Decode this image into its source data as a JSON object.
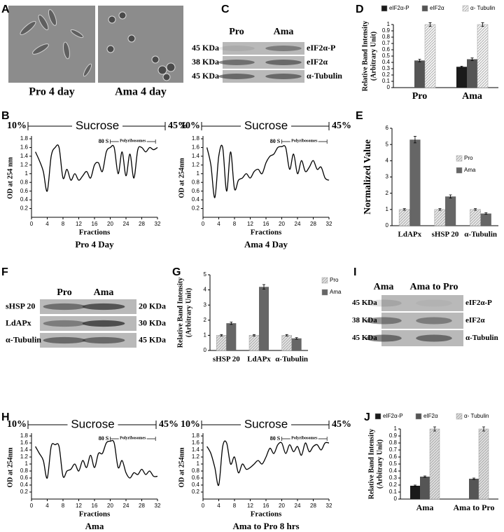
{
  "panel_labels": [
    "A",
    "B",
    "C",
    "D",
    "E",
    "F",
    "G",
    "H",
    "I",
    "J"
  ],
  "images": [
    {
      "label": "Pro 4 day"
    },
    {
      "label": "Ama 4 day"
    }
  ],
  "blots": [
    {
      "columns": [
        "Pro",
        "Ama"
      ],
      "left": [
        "45 KDa",
        "38 KDa",
        "45 KDa"
      ],
      "right": [
        "eIF2α-P",
        "eIF2α",
        "α-Tubulin"
      ]
    },
    {
      "columns": [
        "Pro",
        "Ama"
      ],
      "left": [
        "sHSP 20",
        "LdAPx",
        "α-Tubulin"
      ],
      "right": [
        "20 KDa",
        "30 KDa",
        "45 KDa"
      ]
    },
    {
      "columns": [
        "Ama",
        "Ama to Pro"
      ],
      "left": [
        "45 KDa",
        "38 KDa",
        "45 KDa"
      ],
      "right": [
        "eIF2α-P",
        "eIF2α",
        "α-Tubulin"
      ]
    }
  ],
  "chart_data": [
    {
      "type": "bar",
      "ylabel": [
        "Relative Band Intensity",
        "(Arbitrary Unit)"
      ],
      "categories": [
        "Pro",
        "Ama"
      ],
      "series": [
        {
          "name": "eIF2α-P",
          "color": "#1a1a1a",
          "hatch": false,
          "values": [
            0,
            0.33
          ],
          "errors": [
            0,
            0.01
          ]
        },
        {
          "name": "eIF2α",
          "color": "#555555",
          "hatch": false,
          "values": [
            0.43,
            0.45
          ],
          "errors": [
            0.02,
            0.02
          ]
        },
        {
          "name": "α- Tubulin",
          "color": "#f2f2f2",
          "hatch": true,
          "values": [
            1,
            1
          ],
          "errors": [
            0.03,
            0.03
          ]
        }
      ],
      "ylim": [
        0,
        1
      ],
      "yticks": [
        0,
        0.1,
        0.2,
        0.3,
        0.4,
        0.5,
        0.6,
        0.7,
        0.8,
        0.9,
        1
      ],
      "legend": "top"
    },
    {
      "type": "line",
      "header": {
        "start": "10%",
        "label": "Sucrose",
        "end": "45%"
      },
      "annotations": {
        "peak": "80 S",
        "range": "Polyribosomes"
      },
      "title": "Pro 4 Day",
      "xlabel": "Fractions",
      "ylabel": "OD at 254 nm",
      "color": "#000000",
      "x": [
        1,
        2,
        3,
        4,
        5,
        6,
        7,
        8,
        9,
        10,
        11,
        12,
        13,
        14,
        15,
        16,
        17,
        18,
        19,
        20,
        21,
        22,
        23,
        24,
        25,
        26,
        27,
        28,
        29,
        30,
        31,
        32
      ],
      "values": [
        1.5,
        1.3,
        1.05,
        0.6,
        1.4,
        1.6,
        1.6,
        0.9,
        1.1,
        0.85,
        1.0,
        0.85,
        0.95,
        1.05,
        0.9,
        1.2,
        1.25,
        1.05,
        1.5,
        1.6,
        1.6,
        1.0,
        1.5,
        0.95,
        1.45,
        0.9,
        1.55,
        1.6,
        1.5,
        1.6,
        1.55,
        1.6
      ],
      "xlim": [
        0,
        32
      ],
      "xticks": [
        0,
        4,
        8,
        12,
        16,
        20,
        24,
        28,
        32
      ],
      "ylim": [
        0,
        1.8
      ],
      "yticks": [
        0.2,
        0.4,
        0.6,
        0.8,
        1,
        1.2,
        1.4,
        1.6,
        1.8
      ]
    },
    {
      "type": "line",
      "header": {
        "start": "10%",
        "label": "Sucrose",
        "end": "45%"
      },
      "annotations": {
        "peak": "80 S",
        "range": "Polyribosomes"
      },
      "title": "Ama 4 Day",
      "xlabel": "Fractions",
      "ylabel": "OD at 254nm",
      "color": "#000000",
      "x": [
        1,
        2,
        3,
        4,
        5,
        6,
        7,
        8,
        9,
        10,
        11,
        12,
        13,
        14,
        15,
        16,
        17,
        18,
        19,
        20,
        21,
        22,
        23,
        24,
        25,
        26,
        27,
        28,
        29,
        30,
        31,
        32
      ],
      "values": [
        1.6,
        1.2,
        0.45,
        1.4,
        1.6,
        0.6,
        1.5,
        0.65,
        0.85,
        0.9,
        1.0,
        0.9,
        1.05,
        1.1,
        1.0,
        1.25,
        1.4,
        1.45,
        1.6,
        1.62,
        1.6,
        1.1,
        1.45,
        1.0,
        1.3,
        1.05,
        1.15,
        1.3,
        1.1,
        1.15,
        0.9,
        0.85
      ],
      "xlim": [
        0,
        32
      ],
      "xticks": [
        0,
        4,
        8,
        12,
        16,
        20,
        24,
        28,
        32
      ],
      "ylim": [
        0,
        1.8
      ],
      "yticks": [
        0.2,
        0.4,
        0.6,
        0.8,
        1,
        1.2,
        1.4,
        1.6,
        1.8
      ]
    },
    {
      "type": "bar",
      "ylabel": [
        "Normalized Value"
      ],
      "categories": [
        "LdAPx",
        "sHSP 20",
        "α-Tubulin"
      ],
      "series": [
        {
          "name": "Pro",
          "color": "#e6e6e6",
          "hatch": true,
          "values": [
            1,
            1,
            1
          ],
          "errors": [
            0.05,
            0.05,
            0.05
          ]
        },
        {
          "name": "Ama",
          "color": "#666666",
          "hatch": false,
          "values": [
            5.3,
            1.8,
            0.75
          ],
          "errors": [
            0.2,
            0.1,
            0.05
          ]
        }
      ],
      "ylim": [
        0,
        6
      ],
      "yticks": [
        0,
        1,
        2,
        3,
        4,
        5,
        6
      ],
      "legend": "right"
    },
    {
      "type": "bar",
      "ylabel": [
        "Relative Band Intensity",
        "(Arbitrary Unit)"
      ],
      "categories": [
        "sHSP 20",
        "LdAPx",
        "α-Tubulin"
      ],
      "series": [
        {
          "name": "Pro",
          "color": "#e0e0e0",
          "hatch": true,
          "values": [
            1,
            1,
            1
          ],
          "errors": [
            0.05,
            0.05,
            0.05
          ]
        },
        {
          "name": "Ama",
          "color": "#666666",
          "hatch": false,
          "values": [
            1.8,
            4.2,
            0.8
          ],
          "errors": [
            0.08,
            0.15,
            0.05
          ]
        }
      ],
      "ylim": [
        0,
        5
      ],
      "yticks": [
        0,
        1,
        2,
        3,
        4,
        5
      ],
      "legend": "right"
    },
    {
      "type": "line",
      "header": {
        "start": "10%",
        "label": "Sucrose",
        "end": "45%"
      },
      "annotations": {
        "peak": "80 S",
        "range": "Polyribosomes"
      },
      "title": "Ama",
      "xlabel": "Fractions",
      "ylabel": "OD at 254nm",
      "color": "#000000",
      "x": [
        1,
        2,
        3,
        4,
        5,
        6,
        7,
        8,
        9,
        10,
        11,
        12,
        13,
        14,
        15,
        16,
        17,
        18,
        19,
        20,
        21,
        22,
        23,
        24,
        25,
        26,
        27,
        28,
        29,
        30,
        31,
        32
      ],
      "values": [
        1.5,
        1.3,
        1.1,
        0.6,
        1.5,
        1.55,
        1.5,
        0.65,
        0.8,
        0.85,
        1.0,
        0.8,
        1.1,
        0.9,
        1.25,
        0.9,
        1.3,
        1.3,
        1.6,
        1.65,
        1.6,
        0.9,
        1.1,
        0.75,
        0.6,
        0.75,
        0.7,
        0.85,
        0.7,
        0.8,
        0.65,
        0.65
      ],
      "xlim": [
        0,
        32
      ],
      "xticks": [
        0,
        4,
        8,
        12,
        16,
        20,
        24,
        28,
        32
      ],
      "ylim": [
        0,
        1.8
      ],
      "yticks": [
        0.2,
        0.4,
        0.6,
        0.8,
        1,
        1.2,
        1.4,
        1.6,
        1.8
      ]
    },
    {
      "type": "line",
      "header": {
        "start": "10%",
        "label": "Sucrose",
        "end": "45%"
      },
      "annotations": {
        "peak": "80 S",
        "range": "Polyribosomes"
      },
      "title": "Ama to Pro 8 hrs",
      "xlabel": "Fractions",
      "ylabel": "OD at 254nm",
      "color": "#000000",
      "x": [
        1,
        2,
        3,
        4,
        5,
        6,
        7,
        8,
        9,
        10,
        11,
        12,
        13,
        14,
        15,
        16,
        17,
        18,
        19,
        20,
        21,
        22,
        23,
        24,
        25,
        26,
        27,
        28,
        29,
        30,
        31,
        32
      ],
      "values": [
        1.5,
        1.3,
        0.9,
        0.4,
        1.5,
        1.6,
        1.0,
        1.2,
        0.75,
        1.0,
        0.85,
        0.9,
        1.0,
        1.1,
        1.0,
        1.2,
        1.45,
        1.3,
        1.55,
        1.6,
        1.3,
        1.55,
        1.35,
        1.5,
        1.25,
        1.6,
        1.35,
        1.5,
        1.55,
        1.4,
        1.6,
        1.6
      ],
      "xlim": [
        0,
        32
      ],
      "xticks": [
        0,
        4,
        8,
        12,
        16,
        20,
        24,
        28,
        32
      ],
      "ylim": [
        0,
        1.8
      ],
      "yticks": [
        0.2,
        0.4,
        0.6,
        0.8,
        1,
        1.2,
        1.4,
        1.6,
        1.8
      ]
    },
    {
      "type": "bar",
      "ylabel": [
        "Relative Band Intensity",
        "(Arbitrary Unit)"
      ],
      "categories": [
        "Ama",
        "Ama to Pro"
      ],
      "series": [
        {
          "name": "eIF2α-P",
          "color": "#1a1a1a",
          "hatch": false,
          "values": [
            0.19,
            0
          ],
          "errors": [
            0.01,
            0
          ]
        },
        {
          "name": "eIF2α",
          "color": "#555555",
          "hatch": false,
          "values": [
            0.32,
            0.29
          ],
          "errors": [
            0.01,
            0.01
          ]
        },
        {
          "name": "α- Tubulin",
          "color": "#dddddd",
          "hatch": true,
          "values": [
            1,
            1
          ],
          "errors": [
            0.03,
            0.03
          ]
        }
      ],
      "ylim": [
        0,
        1
      ],
      "yticks": [
        0,
        0.1,
        0.2,
        0.3,
        0.4,
        0.5,
        0.6,
        0.7,
        0.8,
        0.9,
        1
      ],
      "legend": "top"
    }
  ]
}
